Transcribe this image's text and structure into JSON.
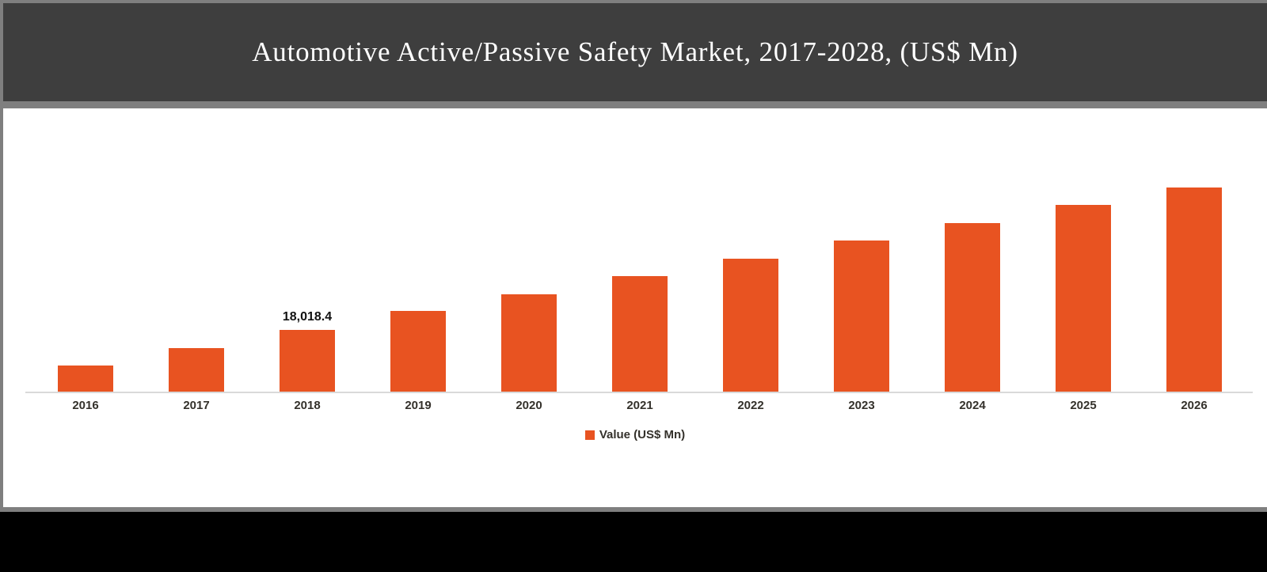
{
  "header": {
    "title": "Automotive Active/Passive Safety Market, 2017-2028, (US$ Mn)"
  },
  "chart_data": {
    "type": "bar",
    "title": "Automotive Active/Passive Safety Market, 2017-2028, (US$ Mn)",
    "categories": [
      "2016",
      "2017",
      "2018",
      "2019",
      "2020",
      "2021",
      "2022",
      "2023",
      "2024",
      "2025",
      "2026"
    ],
    "series": [
      {
        "name": "Value (US$ Mn)",
        "values": [
          7755,
          12770,
          18018.4,
          23490,
          28280,
          33530,
          38545,
          43790,
          48810,
          54055,
          59070
        ]
      }
    ],
    "bar_labels": [
      "",
      "",
      "18,018.4",
      "",
      "",
      "",
      "",
      "",
      "",
      "",
      ""
    ],
    "xlabel": "",
    "ylabel": "",
    "ylim": [
      0,
      82000
    ],
    "grid": false,
    "y_axis_visible": false,
    "legend": {
      "position": "bottom",
      "label": "Value (US$ Mn)"
    },
    "note": "Only the 2018 bar carries a printed data label; other values estimated from bar heights."
  },
  "colors": {
    "bar": "#e85321",
    "header_bg": "#3e3e3e",
    "frame": "#7f7f7f",
    "footer": "#000000",
    "title_text": "#ffffff",
    "axis_line": "#d9d9d9",
    "tick_text": "#34312b"
  }
}
